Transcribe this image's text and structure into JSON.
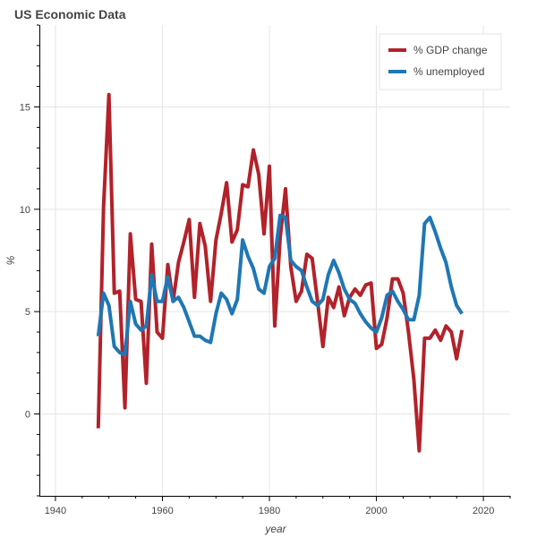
{
  "chart_data": {
    "type": "line",
    "title": "US Economic Data",
    "xlabel": "year",
    "ylabel": "%",
    "xlim": [
      1937,
      2025
    ],
    "ylim": [
      -4,
      19
    ],
    "x_ticks": [
      1940,
      1960,
      1980,
      2000,
      2020
    ],
    "y_ticks": [
      0,
      5,
      10,
      15
    ],
    "grid": true,
    "legend_position": "top-right",
    "x": [
      1948,
      1949,
      1950,
      1951,
      1952,
      1953,
      1954,
      1955,
      1956,
      1957,
      1958,
      1959,
      1960,
      1961,
      1962,
      1963,
      1964,
      1965,
      1966,
      1967,
      1968,
      1969,
      1970,
      1971,
      1972,
      1973,
      1974,
      1975,
      1976,
      1977,
      1978,
      1979,
      1980,
      1981,
      1982,
      1983,
      1984,
      1985,
      1986,
      1987,
      1988,
      1989,
      1990,
      1991,
      1992,
      1993,
      1994,
      1995,
      1996,
      1997,
      1998,
      1999,
      2000,
      2001,
      2002,
      2003,
      2004,
      2005,
      2006,
      2007,
      2008,
      2009,
      2010,
      2011,
      2012,
      2013,
      2014,
      2015,
      2016
    ],
    "series": [
      {
        "name": "% GDP change",
        "color": "#b2222a",
        "values": [
          -0.7,
          10.1,
          15.6,
          5.9,
          6.0,
          0.3,
          8.8,
          5.6,
          5.5,
          1.5,
          8.3,
          4.0,
          3.7,
          7.3,
          5.5,
          7.4,
          8.4,
          9.5,
          5.7,
          9.3,
          8.2,
          5.5,
          8.5,
          9.8,
          11.3,
          8.4,
          9.0,
          11.2,
          11.1,
          12.9,
          11.7,
          8.8,
          12.1,
          4.3,
          8.6,
          11.0,
          7.2,
          5.5,
          6.0,
          7.8,
          7.6,
          5.5,
          3.3,
          5.7,
          5.2,
          6.2,
          4.8,
          5.7,
          6.1,
          5.8,
          6.3,
          6.4,
          3.2,
          3.4,
          4.7,
          6.6,
          6.6,
          5.9,
          4.0,
          1.7,
          -1.8,
          3.7,
          3.7,
          4.1,
          3.6,
          4.3,
          4.0,
          2.7,
          4.1
        ]
      },
      {
        "name": "% unemployed",
        "color": "#1f77b4",
        "values": [
          3.8,
          5.9,
          5.3,
          3.3,
          3.0,
          2.9,
          5.5,
          4.4,
          4.1,
          4.3,
          6.8,
          5.5,
          5.5,
          6.7,
          5.5,
          5.7,
          5.2,
          4.5,
          3.8,
          3.8,
          3.6,
          3.5,
          4.9,
          5.9,
          5.6,
          4.9,
          5.6,
          8.5,
          7.7,
          7.1,
          6.1,
          5.9,
          7.2,
          7.6,
          9.7,
          9.6,
          7.5,
          7.2,
          7.0,
          6.2,
          5.5,
          5.3,
          5.6,
          6.8,
          7.5,
          6.9,
          6.1,
          5.6,
          5.4,
          4.9,
          4.5,
          4.2,
          4.0,
          4.7,
          5.8,
          6.0,
          5.5,
          5.1,
          4.6,
          4.6,
          5.8,
          9.3,
          9.6,
          8.9,
          8.1,
          7.4,
          6.2,
          5.3,
          4.9
        ]
      }
    ]
  }
}
